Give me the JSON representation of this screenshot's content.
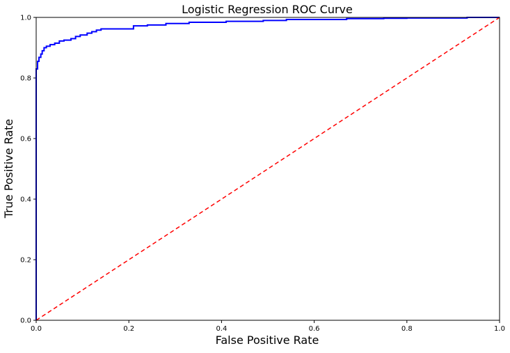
{
  "chart_data": {
    "type": "line",
    "title": "Logistic Regression ROC Curve",
    "xlabel": "False Positive Rate",
    "ylabel": "True Positive Rate",
    "xlim": [
      0.0,
      1.0
    ],
    "ylim": [
      0.0,
      1.0
    ],
    "x_ticks": [
      0.0,
      0.2,
      0.4,
      0.6,
      0.8,
      1.0
    ],
    "y_ticks": [
      0.0,
      0.2,
      0.4,
      0.6,
      0.8,
      1.0
    ],
    "x_tick_labels": [
      "0.0",
      "0.2",
      "0.4",
      "0.6",
      "0.8",
      "1.0"
    ],
    "y_tick_labels": [
      "0.0",
      "0.2",
      "0.4",
      "0.6",
      "0.8",
      "1.0"
    ],
    "grid": false,
    "series": [
      {
        "color": "#0000ff",
        "line_style": "solid",
        "step": true,
        "x": [
          0.0,
          0.0,
          0.003,
          0.003,
          0.006,
          0.006,
          0.01,
          0.01,
          0.013,
          0.013,
          0.017,
          0.017,
          0.022,
          0.022,
          0.03,
          0.03,
          0.04,
          0.04,
          0.05,
          0.05,
          0.06,
          0.06,
          0.075,
          0.075,
          0.085,
          0.085,
          0.095,
          0.095,
          0.11,
          0.11,
          0.12,
          0.12,
          0.13,
          0.13,
          0.14,
          0.14,
          0.16,
          0.16,
          0.21,
          0.21,
          0.24,
          0.24,
          0.28,
          0.28,
          0.33,
          0.33,
          0.41,
          0.41,
          0.49,
          0.49,
          0.54,
          0.54,
          0.67,
          0.67,
          0.75,
          0.75,
          0.8,
          0.8,
          0.93,
          0.93,
          1.0
        ],
        "y": [
          0.0,
          0.83,
          0.83,
          0.855,
          0.855,
          0.868,
          0.868,
          0.879,
          0.879,
          0.89,
          0.89,
          0.9,
          0.9,
          0.905,
          0.905,
          0.91,
          0.91,
          0.915,
          0.915,
          0.922,
          0.922,
          0.925,
          0.925,
          0.93,
          0.93,
          0.937,
          0.937,
          0.942,
          0.942,
          0.948,
          0.948,
          0.953,
          0.953,
          0.958,
          0.958,
          0.962,
          0.962,
          0.962,
          0.962,
          0.972,
          0.972,
          0.975,
          0.975,
          0.98,
          0.98,
          0.984,
          0.984,
          0.987,
          0.987,
          0.99,
          0.99,
          0.993,
          0.993,
          0.996,
          0.996,
          0.997,
          0.997,
          0.998,
          0.998,
          1.0,
          1.0
        ]
      },
      {
        "color": "#ff0000",
        "line_style": "dashed",
        "x": [
          0.0,
          1.0
        ],
        "y": [
          0.0,
          1.0
        ]
      }
    ]
  }
}
